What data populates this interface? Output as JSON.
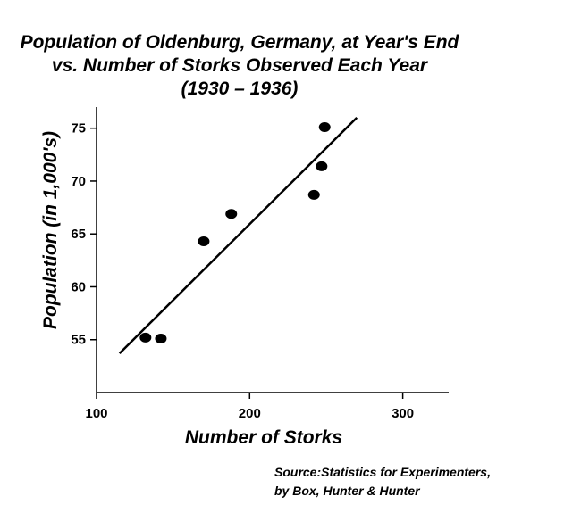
{
  "chart_data": {
    "type": "scatter",
    "title": [
      "Population of Oldenburg, Germany, at Year's End",
      "vs. Number of Storks Observed Each Year",
      "(1930 – 1936)"
    ],
    "xlabel": "Number of Storks",
    "ylabel": "Population (in 1,000's)",
    "xlim": [
      100,
      330
    ],
    "ylim": [
      50,
      77
    ],
    "xticks": [
      100,
      200,
      300
    ],
    "yticks": [
      55,
      60,
      65,
      70,
      75
    ],
    "grid": false,
    "points": [
      {
        "x": 132,
        "y": 55.2
      },
      {
        "x": 142,
        "y": 55.1
      },
      {
        "x": 170,
        "y": 64.3
      },
      {
        "x": 188,
        "y": 66.9
      },
      {
        "x": 242,
        "y": 68.7
      },
      {
        "x": 247,
        "y": 71.4
      },
      {
        "x": 249,
        "y": 75.1
      }
    ],
    "trendline": {
      "x": [
        115,
        270
      ],
      "y": [
        53.7,
        76.0
      ]
    },
    "colors": {
      "points": "#000000",
      "line": "#000000",
      "axes": "#000000"
    },
    "source": [
      "Source:Statistics for Experimenters,",
      "by Box, Hunter & Hunter"
    ]
  }
}
